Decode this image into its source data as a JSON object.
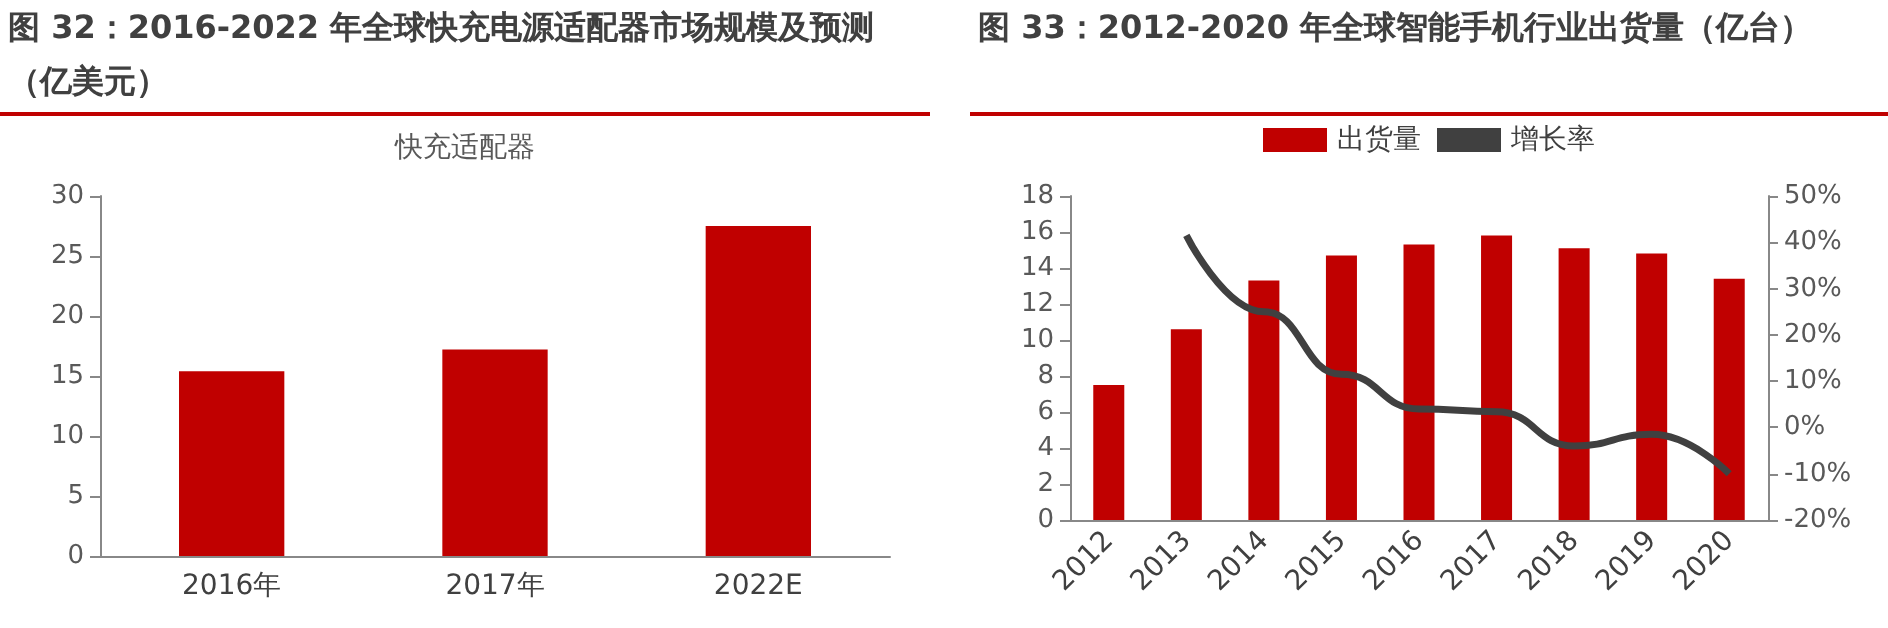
{
  "chart_data": [
    {
      "type": "bar",
      "title": "图 32：2016-2022 年全球快充电源适配器市场规模及预测（亿美元）",
      "subtitle": "快充适配器",
      "categories": [
        "2016年",
        "2017年",
        "2022E"
      ],
      "series": [
        {
          "color": "#c00000",
          "values": [
            15.4,
            17.2,
            27.5
          ]
        }
      ],
      "ylim": [
        0,
        30
      ],
      "yticks": [
        0,
        5,
        10,
        15,
        20,
        25,
        30
      ]
    },
    {
      "type": "bar",
      "title": "图 33：2012-2020 年全球智能手机行业出货量（亿台）",
      "categories": [
        "2012",
        "2013",
        "2014",
        "2015",
        "2016",
        "2017",
        "2018",
        "2019",
        "2020"
      ],
      "series": [
        {
          "name": "出货量",
          "color": "#c00000",
          "values": [
            7.5,
            10.6,
            13.3,
            14.7,
            15.3,
            15.8,
            15.1,
            14.8,
            13.4
          ]
        },
        {
          "name": "增长率",
          "type": "line",
          "axis": "y2",
          "color": "#404040",
          "values": [
            null,
            41.5,
            25,
            11.5,
            4,
            3.4,
            -4,
            -1.5,
            -10
          ]
        }
      ],
      "ylim": [
        0,
        18
      ],
      "yticks": [
        0,
        2,
        4,
        6,
        8,
        10,
        12,
        14,
        16,
        18
      ],
      "y2lim": [
        -20,
        50
      ],
      "y2ticks": [
        {
          "value": -20,
          "label": "-20%"
        },
        {
          "value": -10,
          "label": "-10%"
        },
        {
          "value": 0,
          "label": "0%"
        },
        {
          "value": 10,
          "label": "10%"
        },
        {
          "value": 20,
          "label": "20%"
        },
        {
          "value": 30,
          "label": "30%"
        },
        {
          "value": 40,
          "label": "40%"
        },
        {
          "value": 50,
          "label": "50%"
        }
      ],
      "legend": "top",
      "marker": "none"
    }
  ]
}
